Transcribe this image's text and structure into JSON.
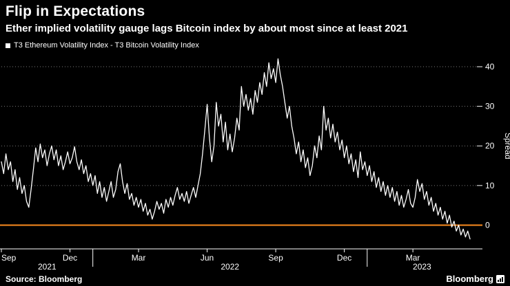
{
  "header": {
    "title": "Flip in Expectations",
    "subtitle": "Ether implied volatility gauge lags Bitcoin index by about most since at least 2021"
  },
  "legend": {
    "label": "T3 Ethereum Volatility Index - T3 Bitcoin Volatility Index"
  },
  "footer": {
    "source": "Source: Bloomberg",
    "brand": "Bloomberg"
  },
  "colors": {
    "background": "#000000",
    "text": "#ffffff",
    "line": "#ffffff",
    "zero_line": "#fb8b1e",
    "grid": "#9a9a9a"
  },
  "chart_data": {
    "type": "line",
    "title": "Flip in Expectations",
    "subtitle": "Ether implied volatility gauge lags Bitcoin index by about most since at least 2021",
    "series_name": "T3 Ethereum Volatility Index - T3 Bitcoin Volatility Index",
    "ylabel": "Spread",
    "y_ticks": [
      0,
      10,
      20,
      30,
      40
    ],
    "ylim": [
      -6,
      44
    ],
    "x_unit": "months since Sep 2021",
    "xlim": [
      0,
      20.8
    ],
    "x_ticks": [
      {
        "pos": 0,
        "label": "Sep"
      },
      {
        "pos": 3,
        "label": "Dec"
      },
      {
        "pos": 6,
        "label": "Mar"
      },
      {
        "pos": 9,
        "label": "Jun"
      },
      {
        "pos": 12,
        "label": "Sep"
      },
      {
        "pos": 15,
        "label": "Dec"
      },
      {
        "pos": 18,
        "label": "Mar"
      }
    ],
    "year_labels": [
      {
        "pos": 2,
        "label": "2021"
      },
      {
        "pos": 10,
        "label": "2022"
      },
      {
        "pos": 18.4,
        "label": "2023"
      }
    ],
    "year_dividers": [
      4,
      16
    ],
    "grid": "dotted-horizontal",
    "legend_position": "top-left",
    "x_start": 0,
    "x_step": 0.1,
    "values": [
      16,
      13,
      18,
      14,
      16,
      11,
      14,
      9,
      12,
      8,
      10,
      6,
      4.5,
      9,
      14,
      19.5,
      16,
      20.5,
      17,
      19,
      15,
      18,
      20,
      16.5,
      19,
      15,
      17.5,
      14,
      16,
      18.5,
      15.5,
      17,
      19.8,
      16,
      14,
      16.5,
      13,
      15,
      11,
      13,
      10,
      12.5,
      8,
      11,
      7,
      9.5,
      6,
      8.5,
      11,
      7,
      9,
      13.5,
      15.5,
      11,
      8,
      10.5,
      6.5,
      8,
      5,
      7,
      4.5,
      6.5,
      3.5,
      5.5,
      2.5,
      4,
      1.5,
      3.5,
      6,
      4,
      5.5,
      3,
      6.5,
      4.5,
      7,
      5,
      7.5,
      9.5,
      6.5,
      8,
      6,
      8.5,
      5.5,
      7.5,
      9.5,
      7,
      10,
      13,
      18,
      24,
      30.5,
      22,
      16,
      20,
      31,
      25,
      28,
      21,
      26,
      19,
      23,
      18.5,
      22,
      27,
      24,
      35,
      30,
      33,
      29,
      32,
      28,
      34,
      31,
      36,
      33,
      38.5,
      35,
      41,
      37,
      39.5,
      36,
      42,
      38,
      35,
      31,
      27,
      30,
      25,
      22,
      18,
      21,
      16,
      19,
      14.5,
      17,
      12.5,
      15,
      20,
      17,
      22.5,
      19,
      30,
      24,
      27,
      22,
      25.5,
      21,
      23.5,
      19,
      21.5,
      17,
      20,
      15.5,
      18,
      13.5,
      16.5,
      12,
      18.5,
      14,
      16,
      12.5,
      15,
      11,
      13.5,
      9.5,
      12,
      8.5,
      11,
      7.5,
      10,
      7,
      9.5,
      6,
      8.5,
      5,
      7.5,
      4.5,
      6.5,
      9,
      5.5,
      4.5,
      7,
      11.5,
      8.5,
      10.5,
      6.5,
      8.5,
      5,
      7,
      3.5,
      5.5,
      2.5,
      4.5,
      1.5,
      3.5,
      0.5,
      2.5,
      -0.5,
      1,
      -1.5,
      0,
      -2.5,
      -1,
      -3,
      -1.5,
      -3.5
    ]
  }
}
